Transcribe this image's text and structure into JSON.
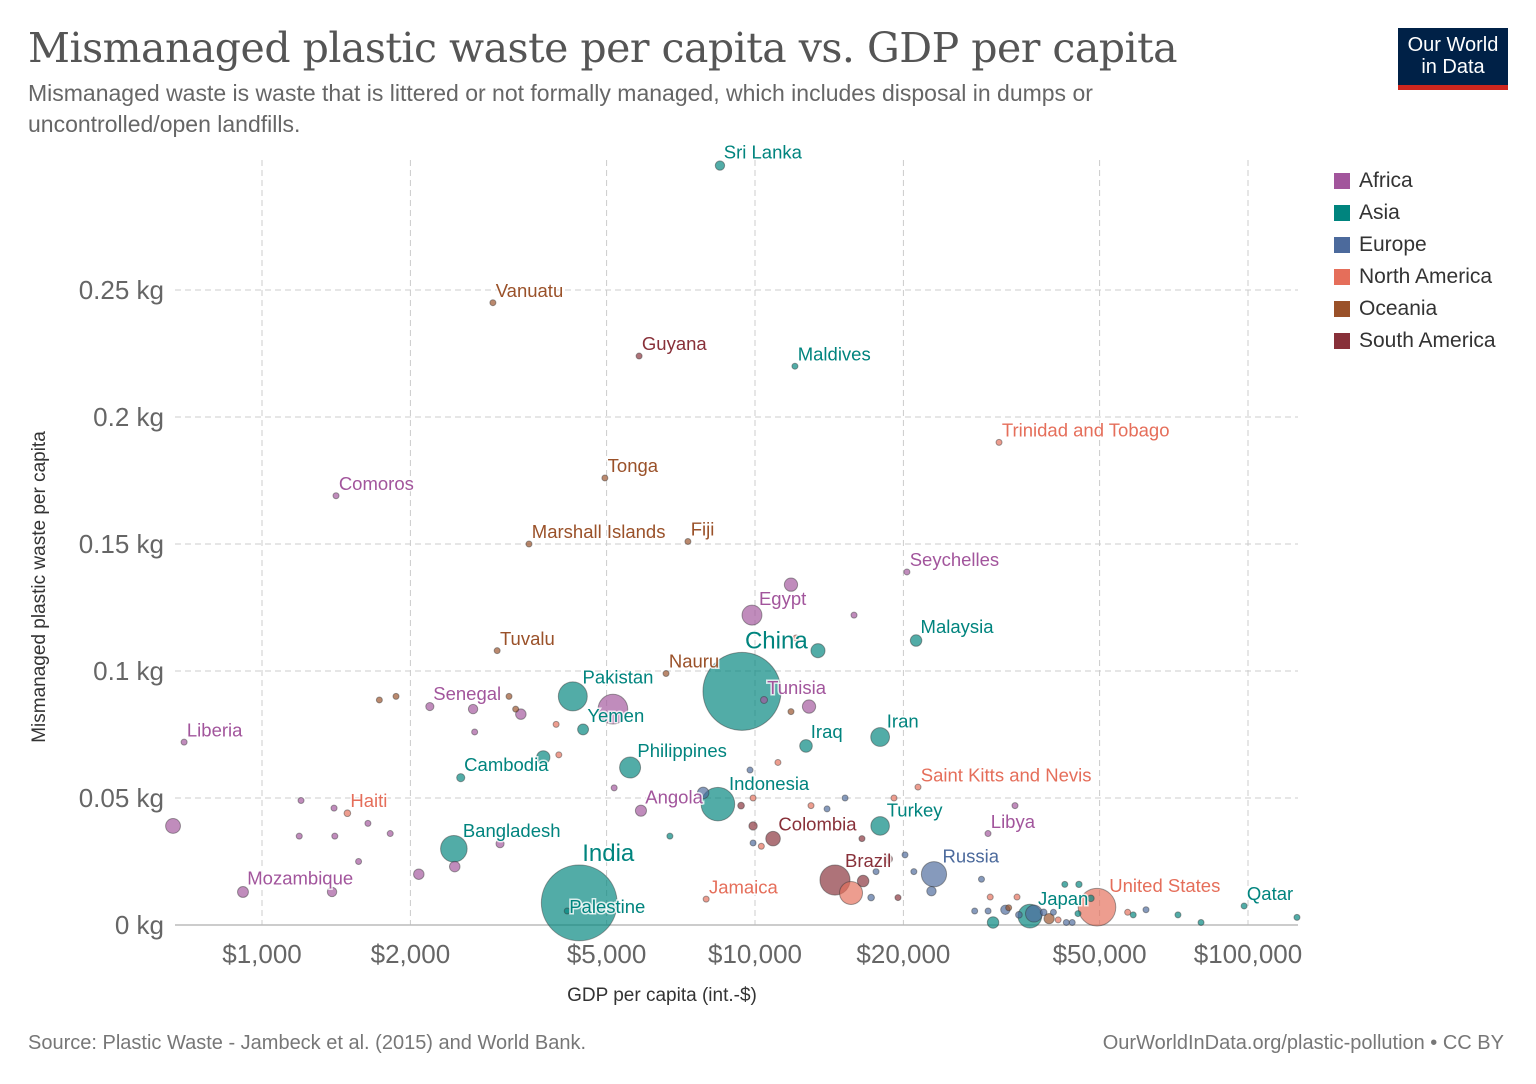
{
  "title": "Mismanaged plastic waste per capita vs. GDP per capita",
  "subtitle": "Mismanaged waste is waste that is littered or not formally managed, which includes disposal in dumps or uncontrolled/open landfills.",
  "logo": {
    "line1": "Our World",
    "line2": "in Data"
  },
  "footer": {
    "source": "Source: Plastic Waste - Jambeck et al. (2015) and World Bank.",
    "url": "OurWorldInData.org/plastic-pollution • CC BY"
  },
  "chart_data": {
    "type": "scatter",
    "xlabel": "GDP per capita (int.-$)",
    "ylabel": "Mismanaged plastic waste per capita",
    "xscale": "log",
    "xlim": [
      665,
      126000
    ],
    "ylim": [
      0,
      0.301
    ],
    "grid": true,
    "legend_placement": "right",
    "xticks": [
      {
        "v": 1000,
        "label": "$1,000"
      },
      {
        "v": 2000,
        "label": "$2,000"
      },
      {
        "v": 5000,
        "label": "$5,000"
      },
      {
        "v": 10000,
        "label": "$10,000"
      },
      {
        "v": 20000,
        "label": "$20,000"
      },
      {
        "v": 50000,
        "label": "$50,000"
      },
      {
        "v": 100000,
        "label": "$100,000"
      }
    ],
    "yticks": [
      {
        "v": 0,
        "label": "0 kg"
      },
      {
        "v": 0.05,
        "label": "0.05 kg"
      },
      {
        "v": 0.1,
        "label": "0.1 kg"
      },
      {
        "v": 0.15,
        "label": "0.15 kg"
      },
      {
        "v": 0.2,
        "label": "0.2 kg"
      },
      {
        "v": 0.25,
        "label": "0.25 kg"
      }
    ],
    "regions": [
      {
        "name": "Africa",
        "color": "#a2559c"
      },
      {
        "name": "Asia",
        "color": "#00847e"
      },
      {
        "name": "Europe",
        "color": "#4c6a9c"
      },
      {
        "name": "North America",
        "color": "#e56e5a"
      },
      {
        "name": "Oceania",
        "color": "#9a5129"
      },
      {
        "name": "South America",
        "color": "#883039"
      }
    ],
    "point_fields": [
      "gdp_per_capita",
      "waste_kg",
      "region",
      "population_millions",
      "label"
    ],
    "points": [
      [
        8490,
        0.299,
        1,
        20,
        "Sri Lanka"
      ],
      [
        2940,
        0.245,
        4,
        0.3,
        "Vanuatu"
      ],
      [
        5820,
        0.224,
        5,
        0.8,
        "Guyana"
      ],
      [
        12050,
        0.22,
        1,
        0.4,
        "Maldives"
      ],
      [
        31260,
        0.19,
        3,
        1.3,
        "Trinidad and Tobago"
      ],
      [
        4960,
        0.176,
        4,
        0.1,
        "Tonga"
      ],
      [
        1413,
        0.169,
        0,
        0.8,
        "Comoros"
      ],
      [
        3480,
        0.15,
        4,
        0.05,
        "Marshall Islands"
      ],
      [
        7310,
        0.151,
        4,
        0.9,
        "Fiji"
      ],
      [
        20330,
        0.139,
        0,
        0.1,
        "Seychelles"
      ],
      [
        9860,
        0.122,
        0,
        90,
        "Egypt"
      ],
      [
        11830,
        0.134,
        0,
        40,
        ""
      ],
      [
        15880,
        0.122,
        0,
        6,
        ""
      ],
      [
        21220,
        0.112,
        1,
        30,
        "Malaysia"
      ],
      [
        12110,
        0.113,
        3,
        3,
        ""
      ],
      [
        13420,
        0.108,
        1,
        45,
        ""
      ],
      [
        9410,
        0.092,
        1,
        1380,
        "China"
      ],
      [
        2999,
        0.108,
        4,
        0.01,
        "Tuvalu"
      ],
      [
        6600,
        0.099,
        4,
        0.01,
        "Nauru"
      ],
      [
        10430,
        0.0886,
        0,
        11,
        "Tunisia"
      ],
      [
        12870,
        0.086,
        0,
        40,
        ""
      ],
      [
        11830,
        0.084,
        4,
        0.3,
        ""
      ],
      [
        4270,
        0.09,
        1,
        190,
        "Pakistan"
      ],
      [
        4480,
        0.077,
        1,
        27,
        "Yemen"
      ],
      [
        5150,
        0.085,
        0,
        200,
        ""
      ],
      [
        2190,
        0.086,
        0,
        15,
        "Senegal"
      ],
      [
        2680,
        0.085,
        0,
        20,
        ""
      ],
      [
        1730,
        0.0886,
        4,
        0.6,
        ""
      ],
      [
        1870,
        0.09,
        4,
        0.6,
        ""
      ],
      [
        3170,
        0.09,
        4,
        7,
        ""
      ],
      [
        3270,
        0.085,
        4,
        0.5,
        ""
      ],
      [
        3350,
        0.083,
        0,
        25,
        ""
      ],
      [
        2700,
        0.076,
        0,
        4,
        ""
      ],
      [
        3950,
        0.079,
        3,
        6,
        ""
      ],
      [
        4000,
        0.067,
        3,
        6,
        ""
      ],
      [
        2530,
        0.058,
        1,
        15,
        "Cambodia"
      ],
      [
        3720,
        0.066,
        1,
        40,
        ""
      ],
      [
        5580,
        0.062,
        1,
        100,
        "Philippines"
      ],
      [
        12690,
        0.0705,
        1,
        36,
        "Iraq"
      ],
      [
        17940,
        0.074,
        1,
        80,
        "Iran"
      ],
      [
        11130,
        0.064,
        3,
        3,
        ""
      ],
      [
        9770,
        0.061,
        2,
        3,
        ""
      ],
      [
        21410,
        0.0543,
        3,
        0.05,
        "Saint Kitts and Nevis"
      ],
      [
        19140,
        0.05,
        3,
        0.3,
        ""
      ],
      [
        15230,
        0.05,
        2,
        7,
        ""
      ],
      [
        5180,
        0.054,
        0,
        3,
        ""
      ],
      [
        8410,
        0.0476,
        1,
        255,
        "Indonesia"
      ],
      [
        7850,
        0.052,
        2,
        30,
        ""
      ],
      [
        5870,
        0.045,
        0,
        28,
        "Angola"
      ],
      [
        9910,
        0.05,
        3,
        1,
        ""
      ],
      [
        9370,
        0.047,
        5,
        10,
        ""
      ],
      [
        12990,
        0.047,
        3,
        5,
        ""
      ],
      [
        14000,
        0.0457,
        2,
        2,
        ""
      ],
      [
        33680,
        0.047,
        0,
        1,
        ""
      ],
      [
        29690,
        0.036,
        0,
        6,
        "Libya"
      ],
      [
        17940,
        0.039,
        1,
        78,
        "Turkey"
      ],
      [
        10880,
        0.034,
        5,
        48,
        "Colombia"
      ],
      [
        9910,
        0.039,
        5,
        16,
        ""
      ],
      [
        16480,
        0.034,
        5,
        3,
        ""
      ],
      [
        6720,
        0.035,
        1,
        4,
        ""
      ],
      [
        9910,
        0.0323,
        2,
        4,
        ""
      ],
      [
        10300,
        0.031,
        3,
        1,
        ""
      ],
      [
        23070,
        0.02,
        2,
        144,
        "Russia"
      ],
      [
        20150,
        0.0276,
        2,
        5,
        ""
      ],
      [
        21000,
        0.021,
        2,
        2,
        ""
      ],
      [
        17600,
        0.021,
        2,
        2,
        ""
      ],
      [
        14530,
        0.0177,
        5,
        205,
        "Brazil"
      ],
      [
        18620,
        0.026,
        5,
        17,
        ""
      ],
      [
        15660,
        0.0126,
        3,
        120,
        ""
      ],
      [
        16570,
        0.0173,
        5,
        30,
        ""
      ],
      [
        17200,
        0.0108,
        2,
        10,
        ""
      ],
      [
        19500,
        0.0108,
        5,
        8,
        ""
      ],
      [
        22800,
        0.0133,
        2,
        20,
        ""
      ],
      [
        7960,
        0.0102,
        3,
        2.8,
        "Jamaica"
      ],
      [
        4400,
        0.0087,
        1,
        1300,
        "India"
      ],
      [
        4160,
        0.0055,
        1,
        4.5,
        "Palestine"
      ],
      [
        2450,
        0.03,
        1,
        160,
        "Bangladesh"
      ],
      [
        2460,
        0.023,
        0,
        25,
        ""
      ],
      [
        2080,
        0.02,
        0,
        25,
        ""
      ],
      [
        3040,
        0.032,
        0,
        15,
        ""
      ],
      [
        915,
        0.013,
        0,
        27,
        "Mozambique"
      ],
      [
        1387,
        0.013,
        0,
        20,
        ""
      ],
      [
        660,
        0.039,
        0,
        50,
        ""
      ],
      [
        1200,
        0.049,
        0,
        6,
        ""
      ],
      [
        1400,
        0.046,
        0,
        4,
        ""
      ],
      [
        1640,
        0.04,
        0,
        4,
        ""
      ],
      [
        1490,
        0.044,
        3,
        10,
        "Haiti"
      ],
      [
        1190,
        0.035,
        0,
        5,
        ""
      ],
      [
        1405,
        0.035,
        0,
        4,
        ""
      ],
      [
        1820,
        0.036,
        0,
        6,
        ""
      ],
      [
        1570,
        0.025,
        0,
        5,
        ""
      ],
      [
        695,
        0.072,
        0,
        4,
        "Liberia"
      ],
      [
        49400,
        0.007,
        3,
        320,
        "United States"
      ],
      [
        98200,
        0.0075,
        1,
        2.2,
        "Qatar"
      ],
      [
        125700,
        0.003,
        1,
        1.5,
        ""
      ],
      [
        36100,
        0.0035,
        1,
        127,
        "Japan"
      ],
      [
        36800,
        0.0045,
        2,
        65,
        ""
      ],
      [
        30400,
        0.001,
        1,
        30,
        ""
      ],
      [
        45400,
        0.016,
        1,
        9,
        ""
      ],
      [
        42500,
        0.016,
        1,
        1,
        ""
      ],
      [
        62100,
        0.006,
        2,
        3,
        ""
      ],
      [
        72100,
        0.004,
        1,
        3,
        ""
      ],
      [
        80300,
        0.001,
        1,
        2,
        ""
      ],
      [
        45200,
        0.0045,
        1,
        5,
        ""
      ],
      [
        27900,
        0.0055,
        2,
        5,
        ""
      ],
      [
        29700,
        0.0055,
        2,
        5,
        ""
      ],
      [
        28800,
        0.018,
        2,
        2,
        ""
      ],
      [
        32200,
        0.006,
        2,
        20,
        ""
      ],
      [
        40300,
        0.005,
        2,
        8,
        ""
      ],
      [
        44000,
        0.001,
        2,
        5,
        ""
      ],
      [
        42800,
        0.001,
        2,
        5,
        ""
      ],
      [
        34300,
        0.004,
        2,
        10,
        ""
      ],
      [
        38500,
        0.005,
        2,
        10,
        ""
      ],
      [
        30000,
        0.011,
        3,
        1,
        ""
      ],
      [
        34000,
        0.011,
        3,
        1,
        ""
      ],
      [
        57000,
        0.005,
        3,
        1,
        ""
      ],
      [
        48000,
        0.0105,
        1,
        10,
        ""
      ],
      [
        32700,
        0.0068,
        4,
        5,
        ""
      ],
      [
        39500,
        0.0025,
        4,
        24,
        ""
      ],
      [
        41200,
        0.002,
        3,
        3,
        ""
      ],
      [
        58500,
        0.004,
        1,
        5.5,
        ""
      ]
    ]
  }
}
